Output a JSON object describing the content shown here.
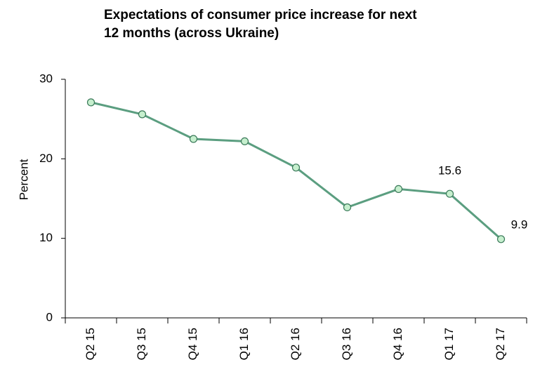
{
  "chart_data": {
    "type": "line",
    "title": [
      "Expectations of consumer price increase for next",
      "12 months (across  Ukraine)"
    ],
    "ylabel": "Percent",
    "categories": [
      "Q2 15",
      "Q3 15",
      "Q4 15",
      "Q1 16",
      "Q2 16",
      "Q3 16",
      "Q4 16",
      "Q1 17",
      "Q2 17"
    ],
    "values": [
      27.1,
      25.6,
      22.5,
      22.2,
      18.9,
      13.9,
      16.2,
      15.6,
      9.9
    ],
    "value_labels": [
      null,
      null,
      null,
      null,
      null,
      null,
      null,
      "15.6",
      "9.9"
    ],
    "color": "#5b9e80",
    "marker_color": "#c6efce",
    "ylim": [
      0,
      30
    ],
    "yticks": [
      0,
      10,
      20,
      30
    ],
    "grid": false
  }
}
